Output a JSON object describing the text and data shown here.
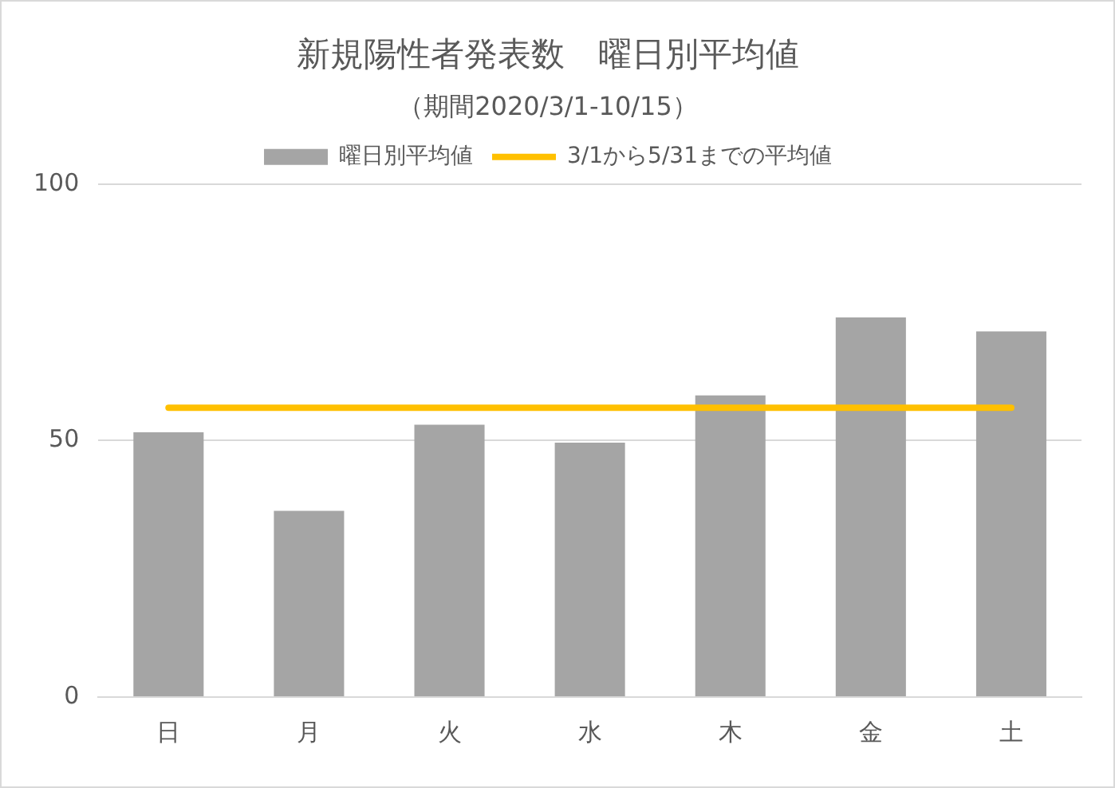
{
  "chart_data": {
    "type": "bar",
    "title": "新規陽性者発表数　曜日別平均値",
    "subtitle": "（期間2020/3/1-10/15）",
    "categories": [
      "日",
      "月",
      "火",
      "水",
      "木",
      "金",
      "土"
    ],
    "series": [
      {
        "name": "曜日別平均値",
        "color": "#a5a5a5",
        "values": [
          51.6,
          36.3,
          53.1,
          49.6,
          58.8,
          74.0,
          71.3
        ]
      },
      {
        "name": "3/1から5/31までの平均値",
        "type": "line",
        "color": "#ffc000",
        "values": [
          56.4,
          56.4,
          56.4,
          56.4,
          56.4,
          56.4,
          56.4
        ]
      }
    ],
    "ylim": [
      0,
      100
    ],
    "yticks": [
      0,
      50,
      100
    ],
    "grid": "y",
    "legend": "top",
    "marker": "none",
    "line_style": "solid"
  }
}
